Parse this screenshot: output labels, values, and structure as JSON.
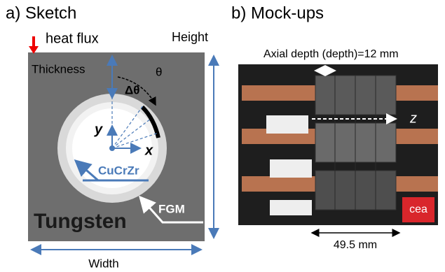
{
  "panel_a": {
    "title": "a) Sketch",
    "heat_flux": "heat flux",
    "height": "Height",
    "thickness": "Thickness",
    "theta": "θ",
    "delta_theta": "Δθ",
    "y_axis": "y",
    "x_axis": "x",
    "cucrzr": "CuCrZr",
    "fgm": "FGM",
    "tungsten": "Tungsten",
    "width": "Width"
  },
  "panel_b": {
    "title": "b) Mock-ups",
    "axial_depth": "Axial depth (depth)=12 mm",
    "z_axis": "z",
    "length": "49.5 mm",
    "logo": "cea"
  }
}
